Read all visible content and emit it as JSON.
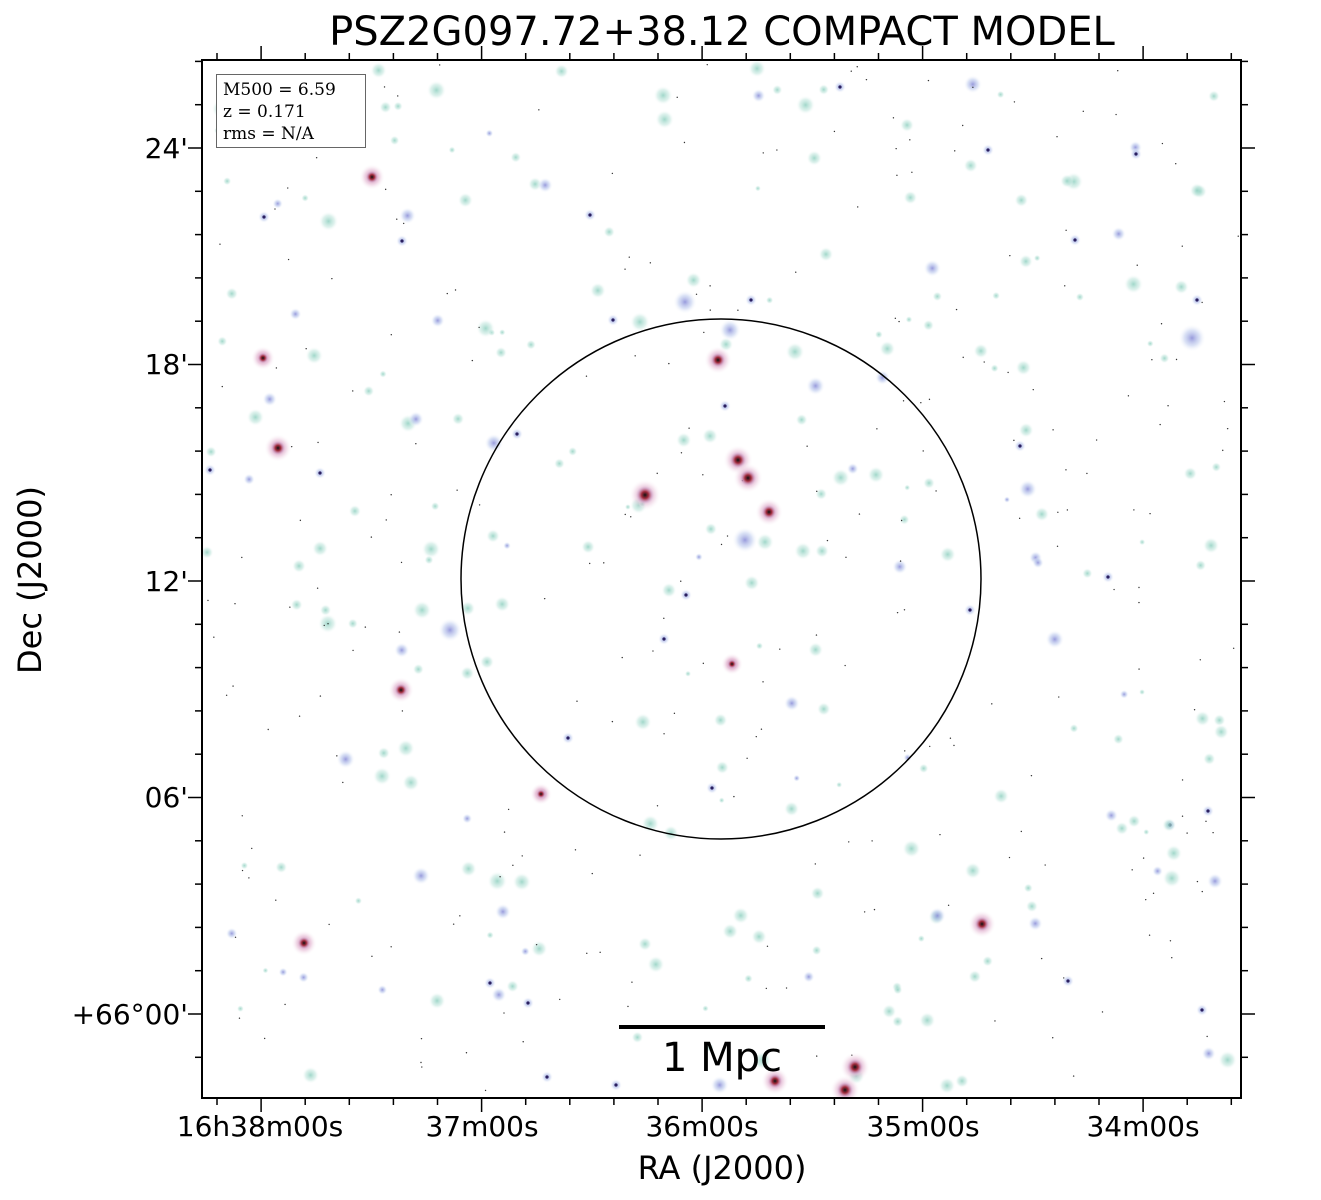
{
  "title": "PSZ2G097.72+38.12 COMPACT MODEL",
  "axes": {
    "xlabel": "RA (J2000)",
    "ylabel": "Dec (J2000)",
    "xticks": [
      "16h38m00s",
      "37m00s",
      "36m00s",
      "35m00s",
      "34m00s"
    ],
    "yticks": [
      "24'",
      "18'",
      "12'",
      "06'",
      "+66°00'"
    ]
  },
  "info_box": {
    "m500": "M500 = 6.59",
    "z": "z = 0.171",
    "rms": "rms = N/A"
  },
  "scale_bar": {
    "label": "1 Mpc"
  },
  "colors": {
    "background": "#ffffff",
    "diffuse_emission": "#9fd6c8",
    "point_sources": "#4a3d9a",
    "bright_cores": "#b03040",
    "circle": "#000000"
  }
}
